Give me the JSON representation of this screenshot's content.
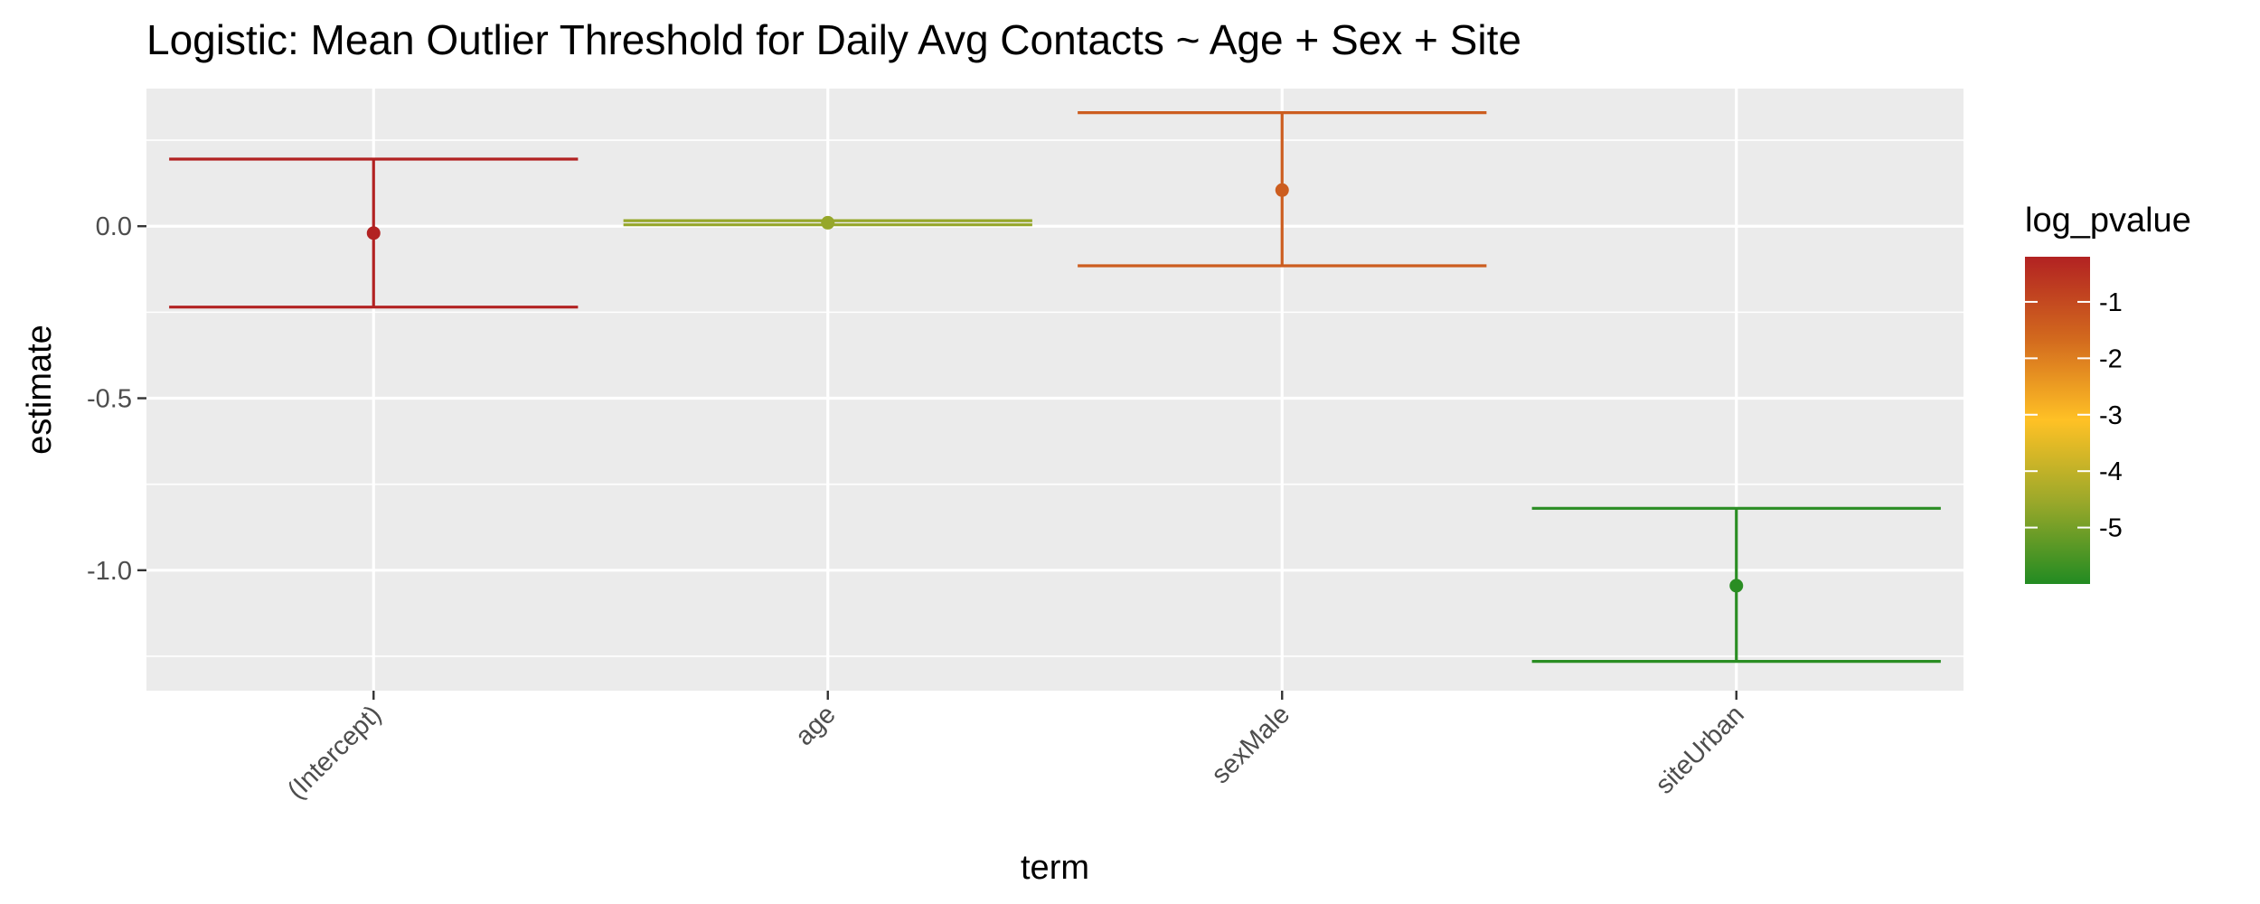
{
  "chart_data": {
    "type": "errorbar",
    "title": "Logistic: Mean Outlier Threshold for Daily Avg Contacts ~ Age + Sex + Site",
    "xlabel": "term",
    "ylabel": "estimate",
    "categories": [
      "(Intercept)",
      "age",
      "sexMale",
      "siteUrban"
    ],
    "points": [
      {
        "term": "(Intercept)",
        "estimate": -0.02,
        "conf_low": -0.235,
        "conf_high": 0.195,
        "log_pvalue": -0.15
      },
      {
        "term": "age",
        "estimate": 0.01,
        "conf_low": 0.004,
        "conf_high": 0.016,
        "log_pvalue": -4.6
      },
      {
        "term": "sexMale",
        "estimate": 0.105,
        "conf_low": -0.115,
        "conf_high": 0.33,
        "log_pvalue": -1.4
      },
      {
        "term": "siteUrban",
        "estimate": -1.045,
        "conf_low": -1.265,
        "conf_high": -0.82,
        "log_pvalue": -5.9
      }
    ],
    "ylim": [
      -1.35,
      0.4
    ],
    "y_ticks": [
      -1.0,
      -0.5,
      0.0
    ],
    "y_tick_labels": [
      "-1.0",
      "-0.5",
      "0.0"
    ],
    "grid": true,
    "legend": {
      "title": "log_pvalue",
      "placement": "right",
      "range": [
        -6.0,
        -0.2
      ],
      "ticks": [
        -1,
        -2,
        -3,
        -4,
        -5
      ],
      "tick_labels": [
        "-1",
        "-2",
        "-3",
        "-4",
        "-5"
      ],
      "gradient_colors": [
        "#B22222",
        "#D2691E",
        "#FFC125",
        "#9AA82A",
        "#228B22"
      ]
    }
  }
}
